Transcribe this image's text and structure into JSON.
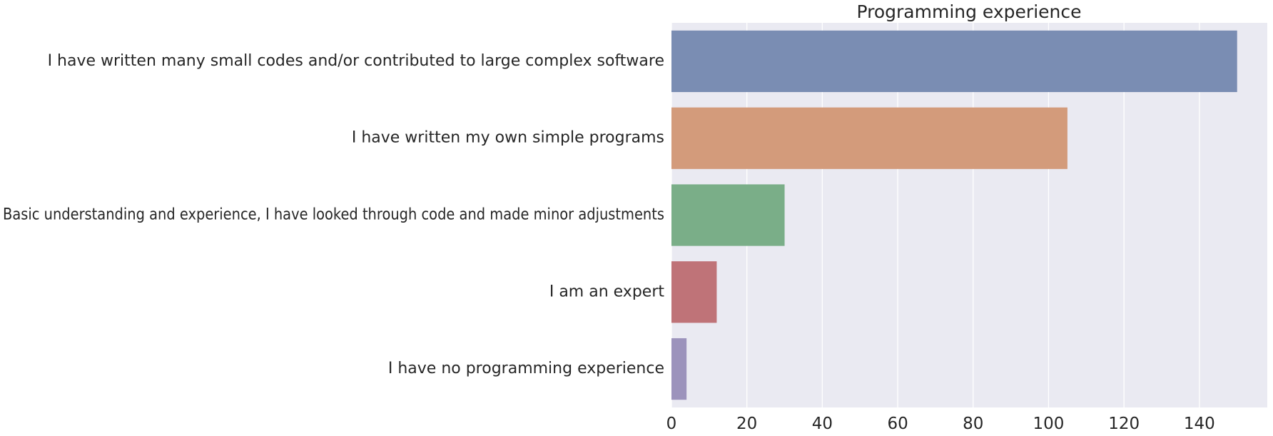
{
  "chart_data": {
    "type": "bar",
    "orientation": "horizontal",
    "title": "Programming experience",
    "xlabel": "",
    "ylabel": "",
    "categories": [
      "I have written many small codes and/or contributed to large complex software",
      "I have written my own simple programs",
      "Basic understanding and experience, I have looked through code and made minor adjustments",
      "I am an expert",
      "I have no programming experience"
    ],
    "values": [
      150,
      105,
      30,
      12,
      4
    ],
    "colors": [
      "#7a8db3",
      "#d39b7b",
      "#7aae88",
      "#bf7378",
      "#9c93bc"
    ],
    "xlim": [
      0,
      158
    ],
    "xticks": [
      0,
      20,
      40,
      60,
      80,
      100,
      120,
      140
    ],
    "grid": true,
    "background": "#eaeaf2",
    "legend": "none"
  }
}
